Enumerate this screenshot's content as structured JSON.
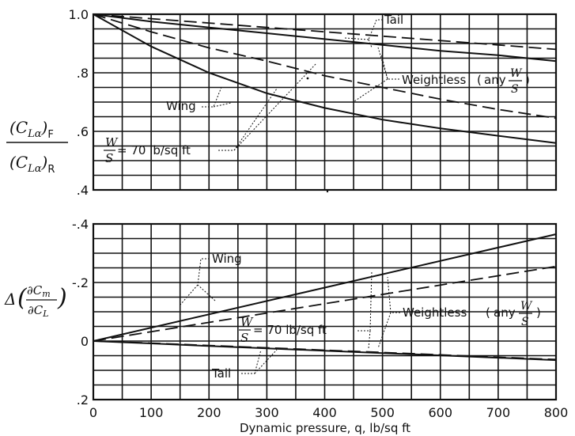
{
  "chart_data": [
    {
      "type": "line",
      "panel": "top",
      "ylabel": {
        "numerator": "(C_Lα)_F",
        "denominator": "(C_Lα)_R"
      },
      "xlim": [
        0,
        800
      ],
      "ylim": [
        0.4,
        1.0
      ],
      "y_inverted": false,
      "grid": true,
      "yticks": [
        ".4",
        ".6",
        ".8",
        "1.0"
      ],
      "series": [
        {
          "name": "Wing",
          "group": "W/S = 70 lb/sq ft",
          "style": "solid",
          "x": [
            0,
            100,
            200,
            300,
            400,
            500,
            600,
            700,
            800
          ],
          "y": [
            1.0,
            0.89,
            0.8,
            0.73,
            0.68,
            0.64,
            0.61,
            0.585,
            0.56
          ]
        },
        {
          "name": "Wing",
          "group": "Weightless (any W/S)",
          "style": "dashed",
          "x": [
            0,
            100,
            200,
            300,
            400,
            500,
            600,
            700,
            800
          ],
          "y": [
            1.0,
            0.94,
            0.885,
            0.84,
            0.79,
            0.75,
            0.71,
            0.675,
            0.645
          ]
        },
        {
          "name": "Tail",
          "group": "W/S = 70 lb/sq ft",
          "style": "solid",
          "x": [
            0,
            100,
            200,
            300,
            400,
            500,
            600,
            700,
            800
          ],
          "y": [
            1.0,
            0.975,
            0.955,
            0.935,
            0.915,
            0.895,
            0.875,
            0.86,
            0.84
          ]
        },
        {
          "name": "Tail",
          "group": "Weightless (any W/S)",
          "style": "dashed",
          "x": [
            0,
            100,
            200,
            300,
            400,
            500,
            600,
            700,
            800
          ],
          "y": [
            1.0,
            0.985,
            0.97,
            0.955,
            0.94,
            0.925,
            0.91,
            0.895,
            0.88
          ]
        }
      ]
    },
    {
      "type": "line",
      "panel": "bottom",
      "ylabel": "Δ(∂C_m/∂C_L)",
      "xlabel": "Dynamic pressure, q, lb/sq ft",
      "xlim": [
        0,
        800
      ],
      "ylim": [
        0.2,
        -0.4
      ],
      "y_inverted": true,
      "grid": true,
      "xticks": [
        "0",
        "100",
        "200",
        "300",
        "400",
        "500",
        "600",
        "700",
        "800"
      ],
      "yticks": [
        ".2",
        "0",
        "-.2",
        "-.4"
      ],
      "series": [
        {
          "name": "Wing",
          "group": "W/S = 70 lb/sq ft",
          "style": "solid",
          "x": [
            0,
            800
          ],
          "y": [
            0,
            -0.365
          ]
        },
        {
          "name": "Wing",
          "group": "Weightless (any W/S)",
          "style": "dashed",
          "x": [
            0,
            800
          ],
          "y": [
            0,
            -0.255
          ]
        },
        {
          "name": "Tail",
          "group": "W/S = 70 lb/sq ft",
          "style": "solid",
          "x": [
            0,
            100,
            200,
            300,
            400,
            500,
            600,
            700,
            800
          ],
          "y": [
            0,
            0.008,
            0.017,
            0.025,
            0.033,
            0.041,
            0.049,
            0.057,
            0.065
          ]
        },
        {
          "name": "Tail",
          "group": "Weightless (any W/S)",
          "style": "dashed",
          "x": [
            0,
            100,
            200,
            300,
            400,
            500,
            600,
            700,
            800
          ],
          "y": [
            0,
            0.007,
            0.015,
            0.023,
            0.031,
            0.039,
            0.047,
            0.055,
            0.063
          ]
        }
      ]
    }
  ],
  "annotations": {
    "tail_top": "Tail",
    "wing_top": "Wing",
    "weightless_top": "Weightless",
    "wing_bottom": "Wing",
    "weightless_bottom": "Weightless",
    "tail_bottom": "Tail",
    "any": "any",
    "W": "W",
    "S": "S",
    "ws_value": "= 70 lb/sq ft"
  },
  "labels": {
    "xlabel": "Dynamic pressure, q, lb/sq ft"
  }
}
